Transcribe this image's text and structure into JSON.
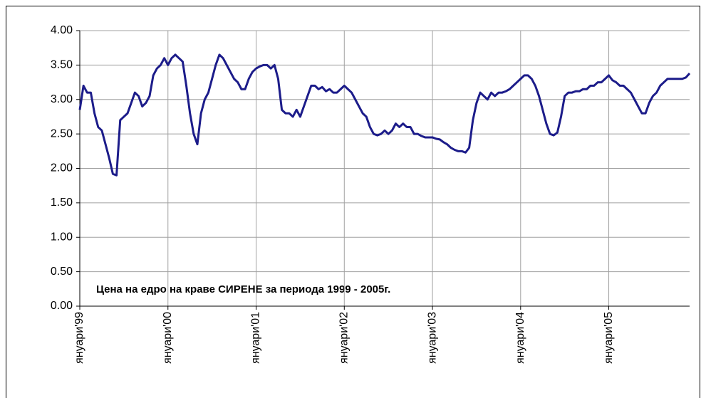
{
  "chart_data": {
    "type": "line",
    "annotation": "Цена  на едро на краве СИРЕНЕ за периода 1999 - 2005г.",
    "x": [
      0,
      1,
      2,
      3,
      4,
      5,
      6,
      7,
      8,
      9,
      10,
      11,
      12,
      13,
      14,
      15,
      16,
      17,
      18,
      19,
      20,
      21,
      22,
      23,
      24,
      25,
      26,
      27,
      28,
      29,
      30,
      31,
      32,
      33,
      34,
      35,
      36,
      37,
      38,
      39,
      40,
      41,
      42,
      43,
      44,
      45,
      46,
      47,
      48,
      49,
      50,
      51,
      52,
      53,
      54,
      55,
      56,
      57,
      58,
      59,
      60,
      61,
      62,
      63,
      64,
      65,
      66,
      67,
      68,
      69,
      70,
      71,
      72,
      73,
      74,
      75,
      76,
      77,
      78,
      79,
      80,
      81,
      82,
      83,
      84,
      85,
      86,
      87,
      88,
      89,
      90,
      91,
      92,
      93,
      94,
      95,
      96,
      97,
      98,
      99,
      100,
      101,
      102,
      103,
      104,
      105,
      106,
      107,
      108,
      109,
      110,
      111,
      112,
      113,
      114,
      115,
      116,
      117,
      118,
      119,
      120,
      121,
      122,
      123,
      124,
      125,
      126,
      127,
      128,
      129,
      130,
      131,
      132,
      133,
      134,
      135,
      136,
      137,
      138,
      139,
      140,
      141,
      142,
      143,
      144,
      145,
      146,
      147,
      148,
      149,
      150,
      151,
      152,
      153,
      154,
      155,
      156,
      157,
      158,
      159,
      160,
      161,
      162,
      163,
      164,
      165,
      166
    ],
    "series": [
      {
        "color": "#1c1c8a",
        "values": [
          2.85,
          3.2,
          3.1,
          3.1,
          2.8,
          2.6,
          2.55,
          2.35,
          2.15,
          1.92,
          1.9,
          2.7,
          2.75,
          2.8,
          2.95,
          3.1,
          3.05,
          2.9,
          2.95,
          3.05,
          3.35,
          3.45,
          3.5,
          3.6,
          3.5,
          3.6,
          3.65,
          3.6,
          3.55,
          3.2,
          2.8,
          2.5,
          2.35,
          2.8,
          3.0,
          3.1,
          3.3,
          3.5,
          3.65,
          3.6,
          3.5,
          3.4,
          3.3,
          3.25,
          3.15,
          3.15,
          3.3,
          3.4,
          3.45,
          3.48,
          3.5,
          3.5,
          3.45,
          3.5,
          3.3,
          2.85,
          2.8,
          2.8,
          2.75,
          2.85,
          2.75,
          2.9,
          3.05,
          3.2,
          3.2,
          3.15,
          3.18,
          3.12,
          3.15,
          3.1,
          3.1,
          3.15,
          3.2,
          3.15,
          3.1,
          3.0,
          2.9,
          2.8,
          2.75,
          2.6,
          2.5,
          2.48,
          2.5,
          2.55,
          2.5,
          2.55,
          2.65,
          2.6,
          2.65,
          2.6,
          2.6,
          2.5,
          2.5,
          2.47,
          2.45,
          2.45,
          2.45,
          2.43,
          2.42,
          2.38,
          2.35,
          2.3,
          2.27,
          2.25,
          2.25,
          2.23,
          2.3,
          2.7,
          2.95,
          3.1,
          3.05,
          3.0,
          3.1,
          3.05,
          3.1,
          3.1,
          3.12,
          3.15,
          3.2,
          3.25,
          3.3,
          3.35,
          3.35,
          3.3,
          3.2,
          3.05,
          2.85,
          2.65,
          2.5,
          2.48,
          2.52,
          2.75,
          3.05,
          3.1,
          3.1,
          3.12,
          3.12,
          3.15,
          3.15,
          3.2,
          3.2,
          3.25,
          3.25,
          3.3,
          3.35,
          3.28,
          3.25,
          3.2,
          3.2,
          3.15,
          3.1,
          3.0,
          2.9,
          2.8,
          2.8,
          2.95,
          3.05,
          3.1,
          3.2,
          3.25,
          3.3,
          3.3,
          3.3,
          3.3,
          3.3,
          3.32,
          3.38
        ]
      }
    ],
    "xlim": [
      0,
      166
    ],
    "xticks": [
      {
        "value": 0,
        "label": "януари'99"
      },
      {
        "value": 24,
        "label": "януари'00"
      },
      {
        "value": 48,
        "label": "януари'01"
      },
      {
        "value": 72,
        "label": "януари'02"
      },
      {
        "value": 96,
        "label": "януари'03"
      },
      {
        "value": 120,
        "label": "януари'04"
      },
      {
        "value": 144,
        "label": "януари'05"
      }
    ],
    "ylim": [
      0,
      4
    ],
    "yticks": [
      {
        "value": 0,
        "label": "0.00"
      },
      {
        "value": 0.5,
        "label": "0.50"
      },
      {
        "value": 1,
        "label": "1.00"
      },
      {
        "value": 1.5,
        "label": "1.50"
      },
      {
        "value": 2,
        "label": "2.00"
      },
      {
        "value": 2.5,
        "label": "2.50"
      },
      {
        "value": 3,
        "label": "3.00"
      },
      {
        "value": 3.5,
        "label": "3.50"
      },
      {
        "value": 4,
        "label": "4.00"
      }
    ],
    "grid": true
  }
}
